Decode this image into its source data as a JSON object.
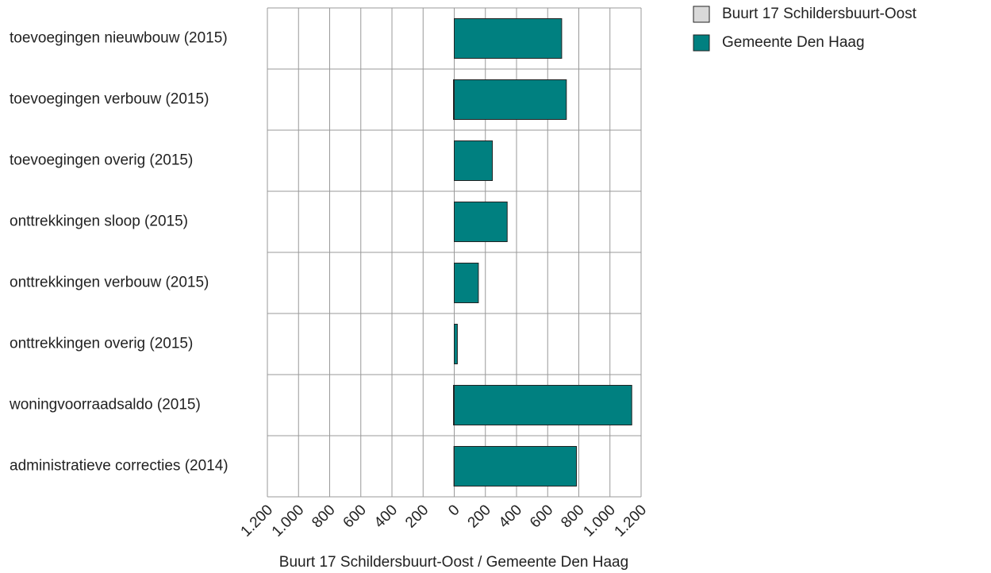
{
  "chart_data": {
    "type": "butterfly",
    "categories": [
      "toevoegingen nieuwbouw (2015)",
      "toevoegingen verbouw (2015)",
      "toevoegingen overig (2015)",
      "onttrekkingen sloop (2015)",
      "onttrekkingen verbouw (2015)",
      "onttrekkingen overig (2015)",
      "woningvoorraadsaldo (2015)",
      "administratieve correcties (2014)"
    ],
    "series": [
      {
        "name": "Buurt 17 Schildersbuurt-Oost",
        "color": "#d9d9d9",
        "side": "left",
        "values": [
          0,
          5,
          0,
          0,
          0,
          0,
          5,
          2
        ]
      },
      {
        "name": "Gemeente Den Haag",
        "color": "#008080",
        "side": "right",
        "values": [
          690,
          720,
          245,
          340,
          155,
          20,
          1140,
          785
        ]
      }
    ],
    "x_label": "Buurt 17 Schildersbuurt-Oost / Gemeente Den Haag",
    "xlim": [
      -1200,
      1200
    ],
    "xticks": [
      {
        "value": -1200,
        "label": "1.200"
      },
      {
        "value": -1000,
        "label": "1.000"
      },
      {
        "value": -800,
        "label": "800"
      },
      {
        "value": -600,
        "label": "600"
      },
      {
        "value": -400,
        "label": "400"
      },
      {
        "value": -200,
        "label": "200"
      },
      0,
      200,
      400,
      600,
      800,
      {
        "value": 1000,
        "label": "1.000"
      },
      {
        "value": 1200,
        "label": "1.200"
      }
    ],
    "grid": true,
    "legend": "top-right"
  }
}
